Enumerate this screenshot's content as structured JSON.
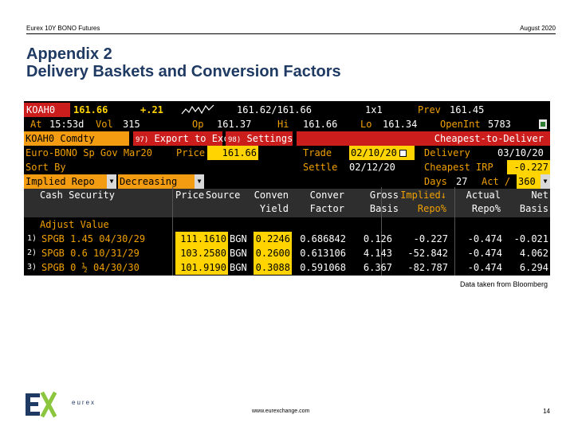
{
  "header": {
    "left": "Eurex 10Y BONO Futures",
    "right": "August 2020"
  },
  "title": {
    "line1": "Appendix 2",
    "line2": "Delivery Baskets and Conversion Factors"
  },
  "terminal": {
    "row1": {
      "ticker": "KOAH0",
      "last": "161.66",
      "change": "+.21",
      "bidask": "161.62/161.66",
      "size": "1x1",
      "prev_label": "Prev",
      "prev": "161.45"
    },
    "row2": {
      "at_label": "At",
      "time": "15:53d",
      "vol_label": "Vol",
      "vol": "315",
      "op_label": "Op",
      "op": "161.37",
      "hi_label": "Hi",
      "hi": "161.66",
      "lo_label": "Lo",
      "lo": "161.34",
      "oi_label": "OpenInt",
      "oi": "5783"
    },
    "row3": {
      "comdty": "KOAH0 Comdty",
      "export_num": "97)",
      "export": "Export to Excel",
      "settings_num": "98)",
      "settings": "Settings",
      "ctd": "Cheapest-to-Deliver"
    },
    "row4": {
      "basket": "Euro-BONO Sp Gov  Mar20",
      "price_label": "Price",
      "price": "161.66",
      "trade_label": "Trade",
      "trade": "02/10/20",
      "delivery_label": "Delivery",
      "delivery": "03/10/20"
    },
    "row5": {
      "sort_label": "Sort By",
      "settle_label": "Settle",
      "settle": "02/12/20",
      "irp_label": "Cheapest IRP",
      "irp": "-0.227"
    },
    "row6": {
      "sort_value": "Implied Repo",
      "order": "Decreasing",
      "days_label": "Days",
      "days": "27",
      "act_label": "Act /",
      "act": "360"
    },
    "columns": {
      "cash_security": "Cash Security",
      "adjust": "Adjust Value",
      "price": "Price",
      "source": "Source",
      "conven_yield": [
        "Conven",
        "Yield"
      ],
      "conver_factor": [
        "Conver",
        "Factor"
      ],
      "gross_basis": [
        "Gross",
        "Basis"
      ],
      "implied_repo": [
        "Implied↓",
        "Repo%"
      ],
      "actual_repo": [
        "Actual",
        "Repo%"
      ],
      "net_basis": [
        "Net",
        "Basis"
      ]
    },
    "bonds": [
      {
        "num": "1)",
        "security": "SPGB 1.45 04/30/29",
        "price": "111.1610",
        "source": "BGN",
        "yield": "0.2246",
        "factor": "0.686842",
        "gross": "0.126",
        "implied": "-0.227",
        "actual": "-0.474",
        "net": "-0.021"
      },
      {
        "num": "2)",
        "security": "SPGB 0.6 10/31/29",
        "price": "103.2580",
        "source": "BGN",
        "yield": "0.2600",
        "factor": "0.613106",
        "gross": "4.143",
        "implied": "-52.842",
        "actual": "-0.474",
        "net": "4.062"
      },
      {
        "num": "3)",
        "security": "SPGB 0 ½ 04/30/30",
        "price": "101.9190",
        "source": "BGN",
        "yield": "0.3088",
        "factor": "0.591068",
        "gross": "6.367",
        "implied": "-82.787",
        "actual": "-0.474",
        "net": "6.294"
      }
    ]
  },
  "caption": "Data taken from Bloomberg",
  "footer": {
    "url": "www.eurexchange.com",
    "page": "14",
    "logo_text": "eurex"
  },
  "colors": {
    "title": "#1f3a63",
    "amber": "#f0a000",
    "orange_bar": "#f39c12",
    "red_bar": "#cc1d1d",
    "logo_blue": "#1f3a63",
    "logo_green": "#8cc63f"
  }
}
